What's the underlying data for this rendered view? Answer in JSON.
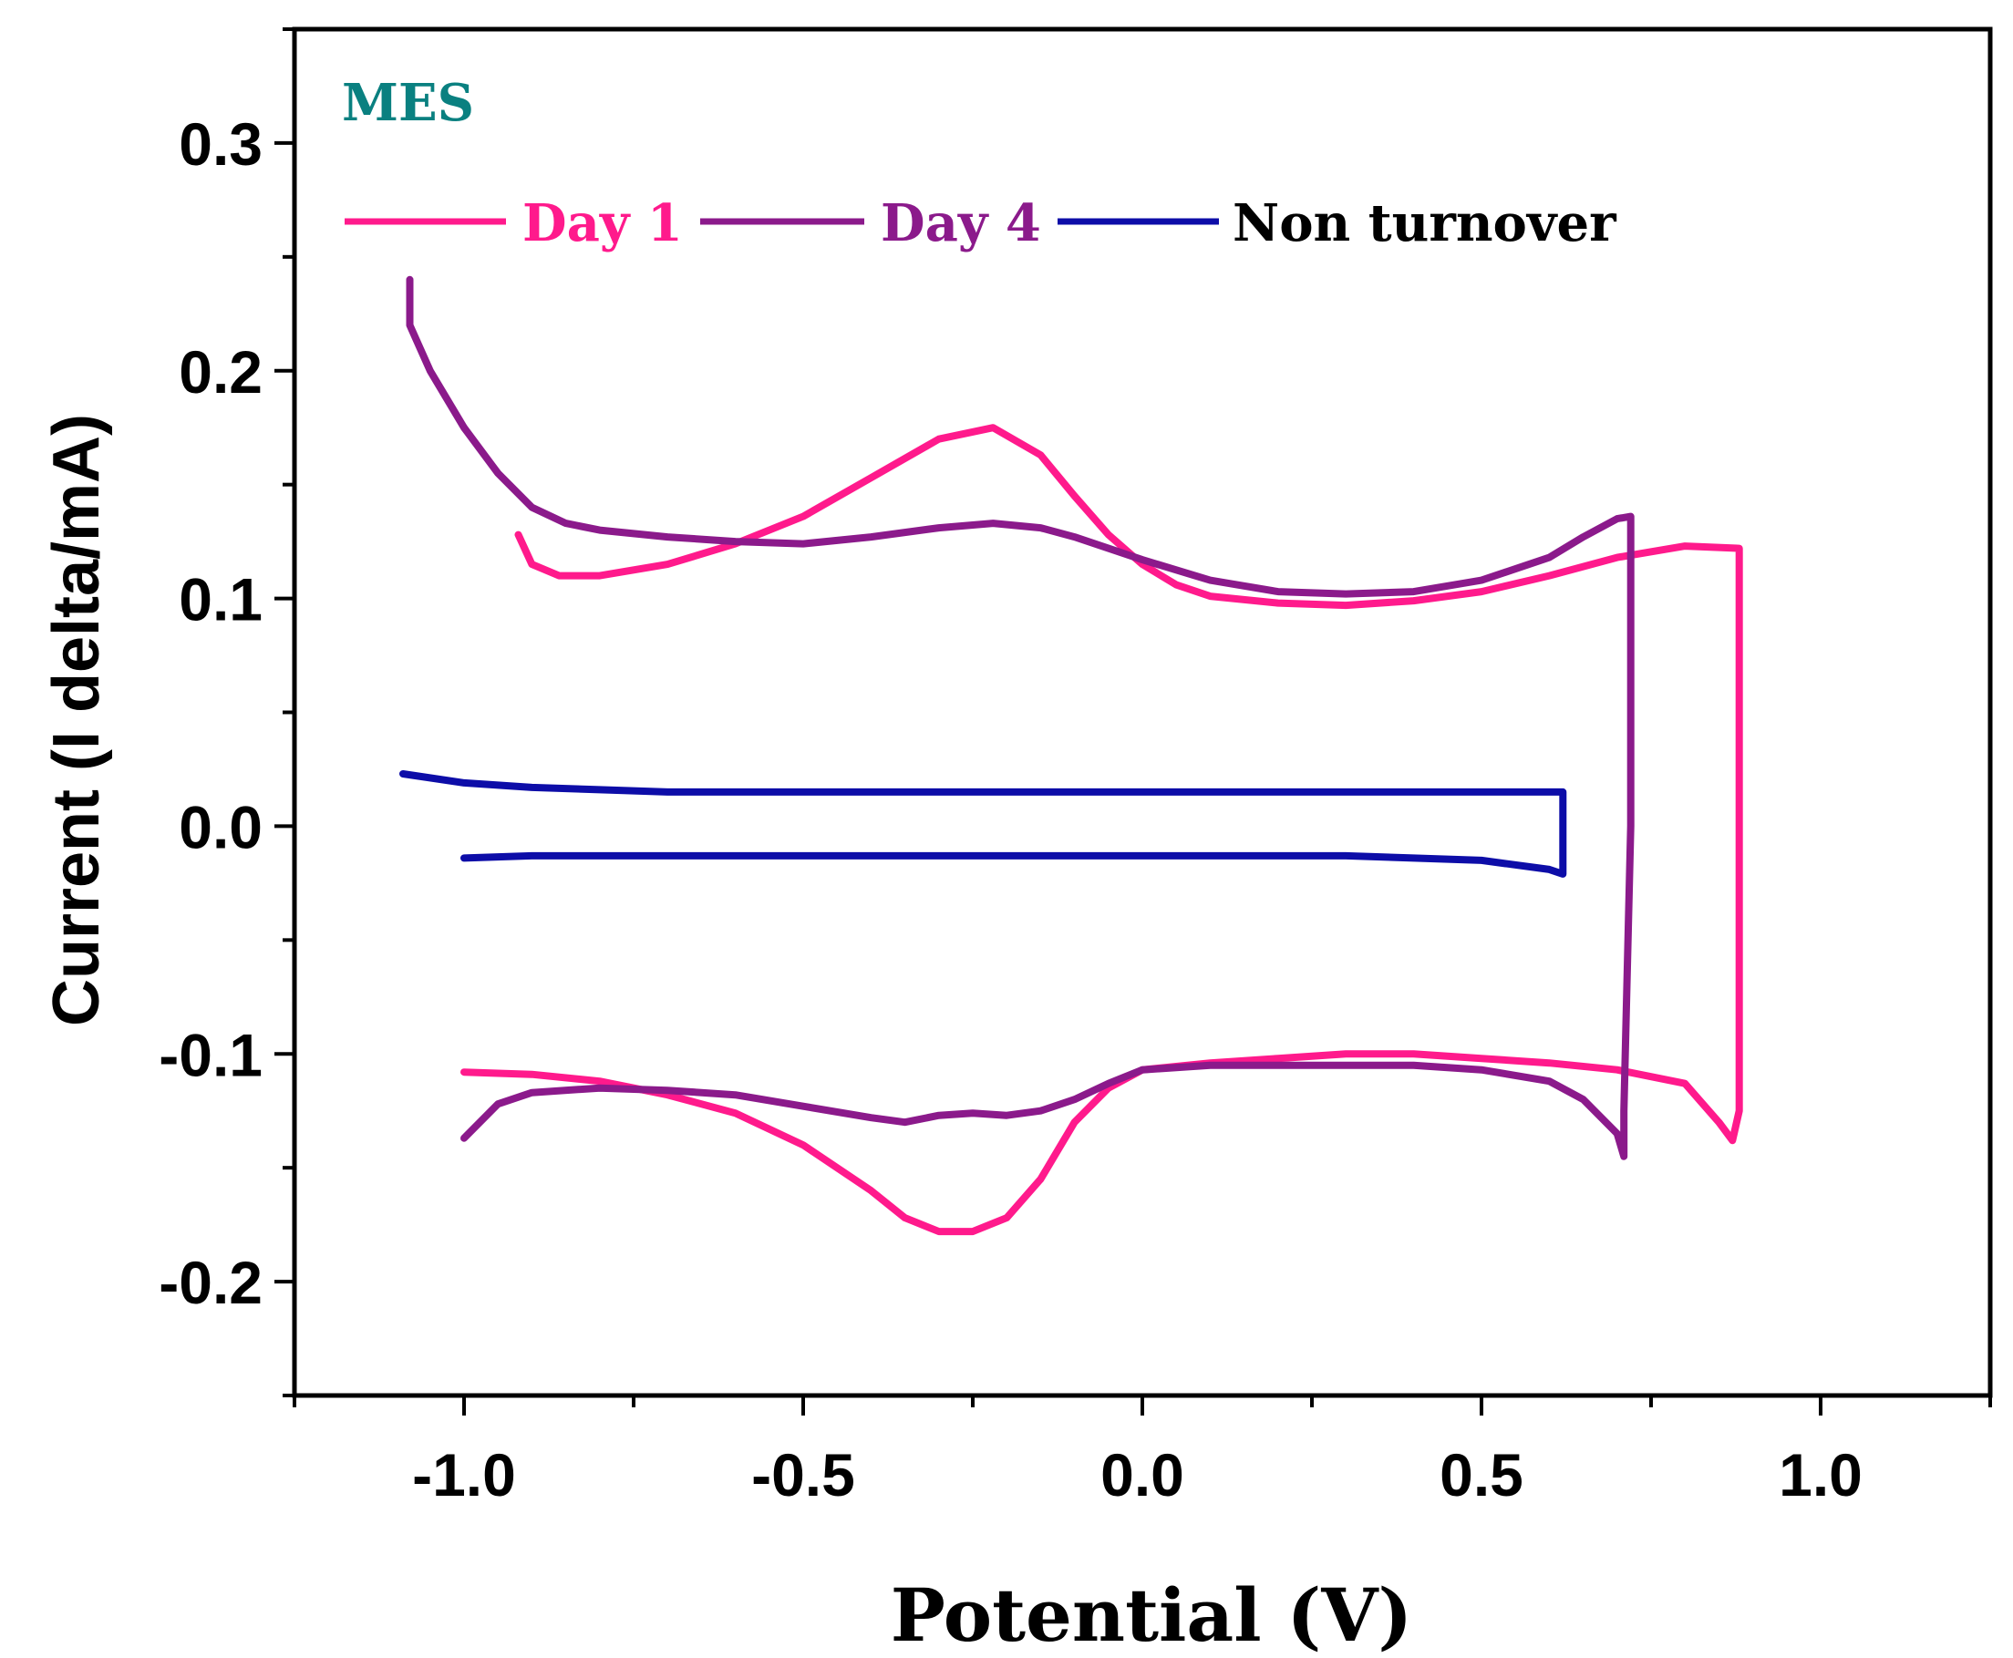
{
  "chart_data": {
    "type": "line",
    "title": "",
    "annotation": "MES",
    "xlabel": "Potential (V)",
    "ylabel": "Current (I delta/mA)",
    "xlim": [
      -1.25,
      1.25
    ],
    "ylim": [
      -0.25,
      0.35
    ],
    "xticks": [
      -1.0,
      -0.5,
      0.0,
      0.5,
      1.0
    ],
    "xtick_labels": [
      "-1.0",
      "-0.5",
      "0.0",
      "0.5",
      "1.0"
    ],
    "yticks": [
      -0.2,
      -0.1,
      0.0,
      0.1,
      0.2,
      0.3
    ],
    "ytick_labels": [
      "-0.2",
      "-0.1",
      "0.0",
      "0.1",
      "0.2",
      "0.3"
    ],
    "legend_position": "top-left",
    "colors": {
      "annotation": "#0a8080",
      "day1": "#ff1a8c",
      "day4": "#8b1a8b",
      "non_turnover": "#0d0da8"
    },
    "series": [
      {
        "name": "Day 1",
        "color": "#ff1a8c",
        "x": [
          -0.92,
          -0.9,
          -0.86,
          -0.8,
          -0.7,
          -0.6,
          -0.5,
          -0.4,
          -0.3,
          -0.22,
          -0.15,
          -0.1,
          -0.05,
          0.0,
          0.05,
          0.1,
          0.2,
          0.3,
          0.4,
          0.5,
          0.6,
          0.7,
          0.8,
          0.88,
          0.88,
          0.88,
          0.87,
          0.85,
          0.8,
          0.7,
          0.6,
          0.5,
          0.4,
          0.3,
          0.2,
          0.1,
          0.0,
          -0.05,
          -0.1,
          -0.15,
          -0.2,
          -0.25,
          -0.3,
          -0.35,
          -0.4,
          -0.5,
          -0.6,
          -0.7,
          -0.8,
          -0.9,
          -1.0
        ],
        "y": [
          0.128,
          0.115,
          0.11,
          0.11,
          0.115,
          0.124,
          0.136,
          0.153,
          0.17,
          0.175,
          0.163,
          0.145,
          0.128,
          0.115,
          0.106,
          0.101,
          0.098,
          0.097,
          0.099,
          0.103,
          0.11,
          0.118,
          0.123,
          0.122,
          0.0,
          -0.125,
          -0.138,
          -0.13,
          -0.113,
          -0.107,
          -0.104,
          -0.102,
          -0.1,
          -0.1,
          -0.102,
          -0.104,
          -0.107,
          -0.115,
          -0.13,
          -0.155,
          -0.172,
          -0.178,
          -0.178,
          -0.172,
          -0.16,
          -0.14,
          -0.126,
          -0.118,
          -0.112,
          -0.109,
          -0.108
        ]
      },
      {
        "name": "Day 4",
        "color": "#8b1a8b",
        "x": [
          -1.08,
          -1.08,
          -1.05,
          -1.0,
          -0.95,
          -0.9,
          -0.85,
          -0.8,
          -0.7,
          -0.6,
          -0.5,
          -0.4,
          -0.3,
          -0.22,
          -0.15,
          -0.1,
          -0.05,
          0.0,
          0.1,
          0.2,
          0.3,
          0.4,
          0.5,
          0.6,
          0.65,
          0.7,
          0.72,
          0.72,
          0.71,
          0.71,
          0.7,
          0.65,
          0.6,
          0.5,
          0.4,
          0.3,
          0.2,
          0.1,
          0.0,
          -0.05,
          -0.1,
          -0.15,
          -0.2,
          -0.25,
          -0.3,
          -0.35,
          -0.4,
          -0.5,
          -0.6,
          -0.7,
          -0.8,
          -0.9,
          -0.95,
          -1.0
        ],
        "y": [
          0.24,
          0.22,
          0.2,
          0.175,
          0.155,
          0.14,
          0.133,
          0.13,
          0.127,
          0.125,
          0.124,
          0.127,
          0.131,
          0.133,
          0.131,
          0.127,
          0.122,
          0.117,
          0.108,
          0.103,
          0.102,
          0.103,
          0.108,
          0.118,
          0.127,
          0.135,
          0.136,
          0.0,
          -0.125,
          -0.145,
          -0.135,
          -0.12,
          -0.112,
          -0.107,
          -0.105,
          -0.105,
          -0.105,
          -0.105,
          -0.107,
          -0.113,
          -0.12,
          -0.125,
          -0.127,
          -0.126,
          -0.127,
          -0.13,
          -0.128,
          -0.123,
          -0.118,
          -0.116,
          -0.115,
          -0.117,
          -0.122,
          -0.137
        ]
      },
      {
        "name": "Non turnover",
        "color": "#0d0da8",
        "x": [
          -1.09,
          -1.0,
          -0.9,
          -0.8,
          -0.7,
          -0.6,
          -0.5,
          -0.4,
          -0.3,
          -0.2,
          -0.1,
          0.0,
          0.1,
          0.2,
          0.3,
          0.4,
          0.5,
          0.6,
          0.62,
          0.62,
          0.6,
          0.5,
          0.4,
          0.3,
          0.2,
          0.1,
          0.0,
          -0.1,
          -0.2,
          -0.3,
          -0.4,
          -0.5,
          -0.6,
          -0.7,
          -0.8,
          -0.9,
          -1.0
        ],
        "y": [
          0.023,
          0.019,
          0.017,
          0.016,
          0.015,
          0.015,
          0.015,
          0.015,
          0.015,
          0.015,
          0.015,
          0.015,
          0.015,
          0.015,
          0.015,
          0.015,
          0.015,
          0.015,
          0.015,
          -0.021,
          -0.019,
          -0.015,
          -0.014,
          -0.013,
          -0.013,
          -0.013,
          -0.013,
          -0.013,
          -0.013,
          -0.013,
          -0.013,
          -0.013,
          -0.013,
          -0.013,
          -0.013,
          -0.013,
          -0.014
        ]
      }
    ]
  }
}
